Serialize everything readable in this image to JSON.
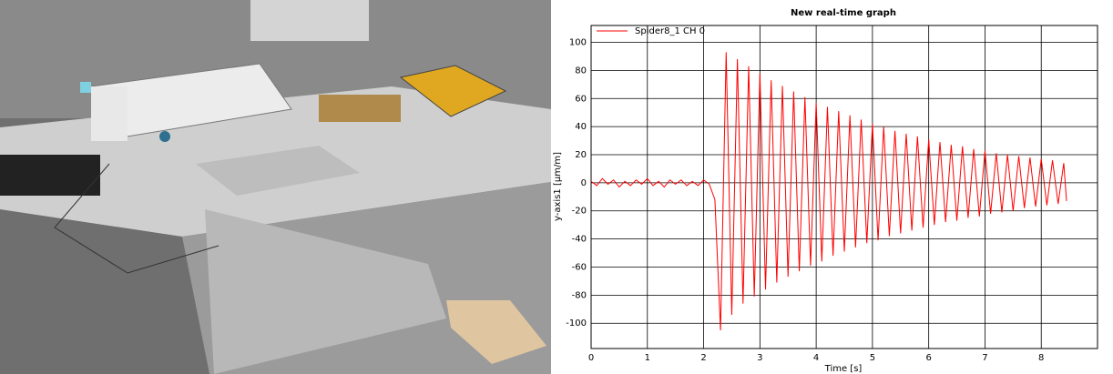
{
  "chart_data": {
    "type": "line",
    "title": "New real-time graph",
    "x_label": "Time [s]",
    "y_label": "y-axis1 [µm/m]",
    "x": [
      0,
      0.1,
      0.2,
      0.3,
      0.4,
      0.5,
      0.6,
      0.7,
      0.8,
      0.9,
      1.0,
      1.1,
      1.2,
      1.3,
      1.4,
      1.5,
      1.6,
      1.7,
      1.8,
      1.9,
      2.0,
      2.1,
      2.2,
      2.3,
      2.4,
      2.5,
      2.6,
      2.7,
      2.8,
      2.9,
      3.0,
      3.1,
      3.2,
      3.3,
      3.4,
      3.5,
      3.6,
      3.7,
      3.8,
      3.9,
      4.0,
      4.1,
      4.2,
      4.3,
      4.4,
      4.5,
      4.6,
      4.7,
      4.8,
      4.9,
      5.0,
      5.1,
      5.2,
      5.3,
      5.4,
      5.5,
      5.6,
      5.7,
      5.8,
      5.9,
      6.0,
      6.1,
      6.2,
      6.3,
      6.4,
      6.5,
      6.6,
      6.7,
      6.8,
      6.9,
      7.0,
      7.1,
      7.2,
      7.3,
      7.4,
      7.5,
      7.6,
      7.7,
      7.8,
      7.9,
      8.0,
      8.1,
      8.2,
      8.3,
      8.4,
      8.45
    ],
    "series": [
      {
        "name": "Spider8_1 CH 0",
        "color": "#ff0000",
        "values": [
          1,
          -2,
          3,
          -1,
          2,
          -3,
          1,
          -2,
          2,
          -1,
          3,
          -2,
          1,
          -3,
          2,
          -1,
          2,
          -2,
          1,
          -2,
          2,
          -1,
          -12,
          -105,
          93,
          -94,
          88,
          -86,
          83,
          -81,
          78,
          -76,
          73,
          -71,
          69,
          -67,
          65,
          -63,
          61,
          -59,
          57,
          -56,
          54,
          -52,
          51,
          -49,
          48,
          -46,
          45,
          -43,
          42,
          -41,
          40,
          -38,
          37,
          -36,
          35,
          -34,
          33,
          -32,
          31,
          -30,
          29,
          -28,
          27,
          -27,
          26,
          -25,
          24,
          -24,
          23,
          -22,
          21,
          -21,
          20,
          -20,
          19,
          -18,
          18,
          -17,
          17,
          -16,
          16,
          -15,
          14,
          -13
        ]
      }
    ],
    "xlim": [
      0,
      9
    ],
    "xticks": [
      0,
      1,
      2,
      3,
      4,
      5,
      6,
      7,
      8
    ],
    "ylim": [
      -118,
      112
    ],
    "yticks": [
      -100,
      -80,
      -60,
      -40,
      -20,
      0,
      20,
      40,
      60,
      80,
      100
    ],
    "grid": true,
    "legend": "top-left"
  }
}
